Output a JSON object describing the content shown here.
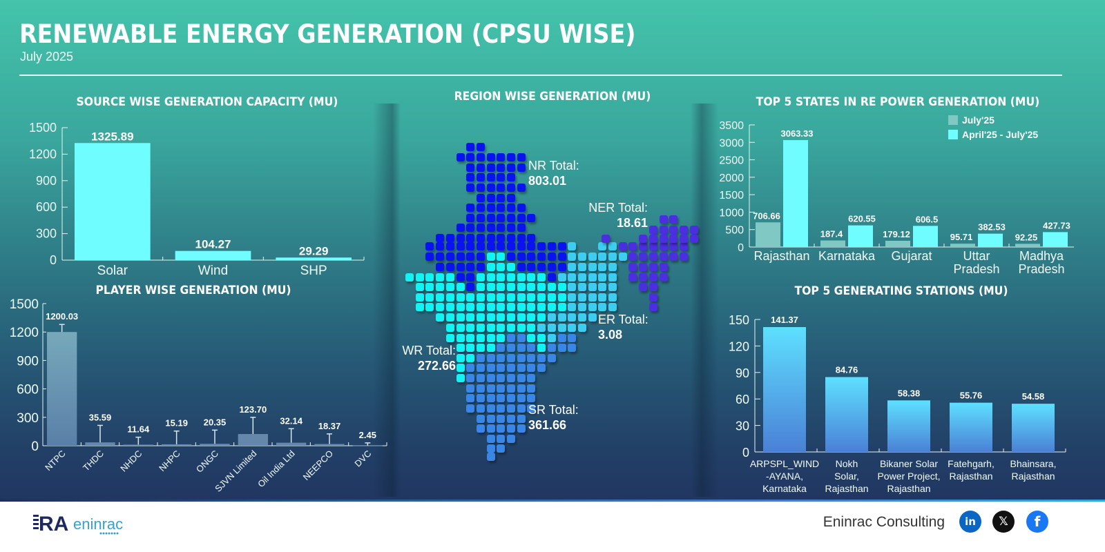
{
  "header": {
    "title": "RENEWABLE ENERGY GENERATION (CPSU WISE)",
    "subtitle": "July 2025"
  },
  "colors": {
    "source_bar": "#6ffdff",
    "player_bar": "#6e93ad",
    "states_july": "#7fc8c4",
    "states_ytd": "#6ffdff",
    "stations_top": "#5ee0ff",
    "stations_bottom": "#4a80d6",
    "nr": "#0a12f0",
    "wr": "#10f4f4",
    "er": "#3ccdf0",
    "sr": "#3a86e6",
    "ner": "#4b2ee0"
  },
  "chart_data": [
    {
      "id": "source",
      "type": "bar",
      "title": "SOURCE WISE GENERATION CAPACITY (MU)",
      "categories": [
        "Solar",
        "Wind",
        "SHP"
      ],
      "values": [
        1325.89,
        104.27,
        29.29
      ],
      "labels": [
        "1325.89",
        "104.27",
        "29.29"
      ],
      "yticks": [
        "0",
        "300",
        "600",
        "900",
        "1200",
        "1500"
      ],
      "ylim": [
        0,
        1500
      ],
      "xlabel": "",
      "ylabel": "",
      "grid": false
    },
    {
      "id": "player",
      "type": "bar",
      "title": "PLAYER WISE GENERATION (MU)",
      "categories": [
        "NTPC",
        "THDC",
        "NHDC",
        "NHPC",
        "ONGC",
        "SJVN Limited",
        "Oil India Ltd",
        "NEEPCO",
        "DVC"
      ],
      "values": [
        1200.03,
        35.59,
        11.64,
        15.19,
        20.35,
        123.7,
        32.14,
        18.37,
        2.45
      ],
      "labels": [
        "1200.03",
        "35.59",
        "11.64",
        "15.19",
        "20.35",
        "123.70",
        "32.14",
        "18.37",
        "2.45"
      ],
      "yticks": [
        "0",
        "300",
        "600",
        "900",
        "1200",
        "1500"
      ],
      "ylim": [
        0,
        1500
      ],
      "xlabel": "",
      "ylabel": "",
      "grid": false
    },
    {
      "id": "region",
      "type": "table",
      "title": "REGION WISE GENERATION (MU)",
      "regions": [
        {
          "code": "NR",
          "label": "NR Total:",
          "value": "803.01"
        },
        {
          "code": "NER",
          "label": "NER Total:",
          "value": "18.61"
        },
        {
          "code": "ER",
          "label": "ER Total:",
          "value": "3.08"
        },
        {
          "code": "WR",
          "label": "WR Total:",
          "value": "272.66"
        },
        {
          "code": "SR",
          "label": "SR Total:",
          "value": "361.66"
        }
      ]
    },
    {
      "id": "states",
      "type": "bar",
      "title": "TOP 5 STATES IN RE POWER GENERATION (MU)",
      "categories": [
        "Rajasthan",
        "Karnataka",
        "Gujarat",
        "Uttar Pradesh",
        "Madhya Pradesh"
      ],
      "series": [
        {
          "name": "July'25",
          "values": [
            706.66,
            187.4,
            179.12,
            95.71,
            92.25
          ],
          "labels": [
            "706.66",
            "187.4",
            "179.12",
            "95.71",
            "92.25"
          ]
        },
        {
          "name": "April'25 - July'25",
          "values": [
            3063.33,
            620.55,
            606.5,
            382.53,
            427.73
          ],
          "labels": [
            "3063.33",
            "620.55",
            "606.5",
            "382.53",
            "427.73"
          ]
        }
      ],
      "yticks": [
        "0",
        "500",
        "1000",
        "1500",
        "2000",
        "2500",
        "3000",
        "3500"
      ],
      "ylim": [
        0,
        3500
      ],
      "legend": "top-right",
      "xlabel": "",
      "ylabel": "",
      "grid": false
    },
    {
      "id": "stations",
      "type": "bar",
      "title": "TOP 5 GENERATING STATIONS (MU)",
      "categories": [
        "ARPSPL_WIND -AYANA, Karnataka",
        "Nokh Solar, Rajasthan",
        "Bikaner Solar Power Project, Rajasthan",
        "Fatehgarh, Rajasthan",
        "Bhainsara, Rajasthan"
      ],
      "category_lines": [
        [
          "ARPSPL_WIND",
          "-AYANA,",
          "Karnataka"
        ],
        [
          "Nokh",
          "Solar,",
          "Rajasthan"
        ],
        [
          "Bikaner Solar",
          "Power Project,",
          "Rajasthan"
        ],
        [
          "Fatehgarh,",
          "Rajasthan"
        ],
        [
          "Bhainsara,",
          "Rajasthan"
        ]
      ],
      "values": [
        141.37,
        84.76,
        58.38,
        55.76,
        54.58
      ],
      "labels": [
        "141.37",
        "84.76",
        "58.38",
        "55.76",
        "54.58"
      ],
      "yticks": [
        "0",
        "30",
        "60",
        "90",
        "120",
        "150"
      ],
      "ylim": [
        0,
        150
      ],
      "xlabel": "",
      "ylabel": "",
      "grid": false
    }
  ],
  "footer": {
    "logo_text_1": "RA",
    "logo_text_2": "eninrac",
    "brand": "Eninrac Consulting",
    "social": [
      {
        "name": "linkedin",
        "glyph": "in",
        "color": "#0a66c2"
      },
      {
        "name": "x",
        "glyph": "𝕏",
        "color": "#111111"
      },
      {
        "name": "facebook",
        "glyph": "f",
        "color": "#1877f2"
      }
    ]
  }
}
